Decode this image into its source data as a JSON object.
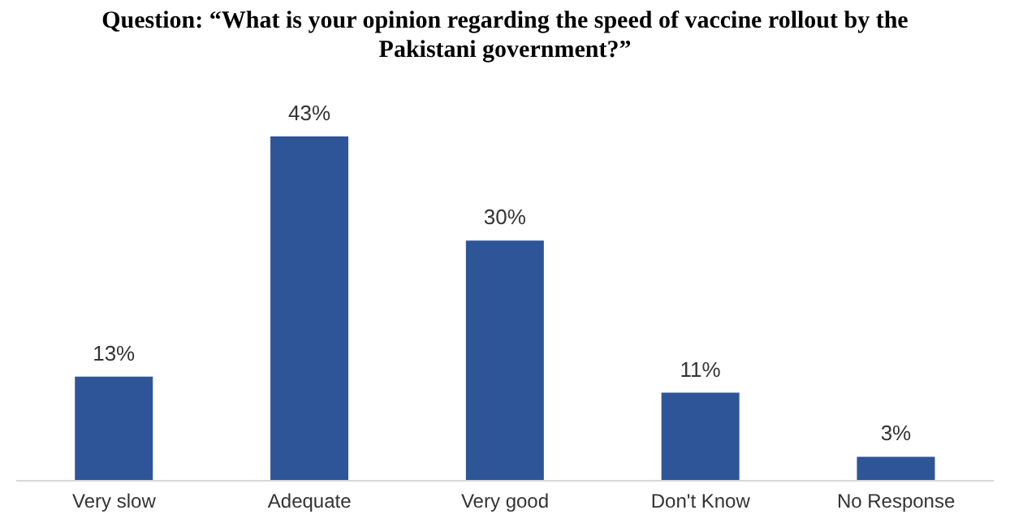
{
  "chart_data": {
    "type": "bar",
    "title": "Question: “What is your opinion regarding the speed of vaccine rollout by the Pakistani government?”",
    "categories": [
      "Very slow",
      "Adequate",
      "Very good",
      "Don't Know",
      "No Response"
    ],
    "values": [
      13,
      43,
      30,
      11,
      3
    ],
    "value_labels": [
      "13%",
      "43%",
      "30%",
      "11%",
      "3%"
    ],
    "color": "#2e5597"
  }
}
